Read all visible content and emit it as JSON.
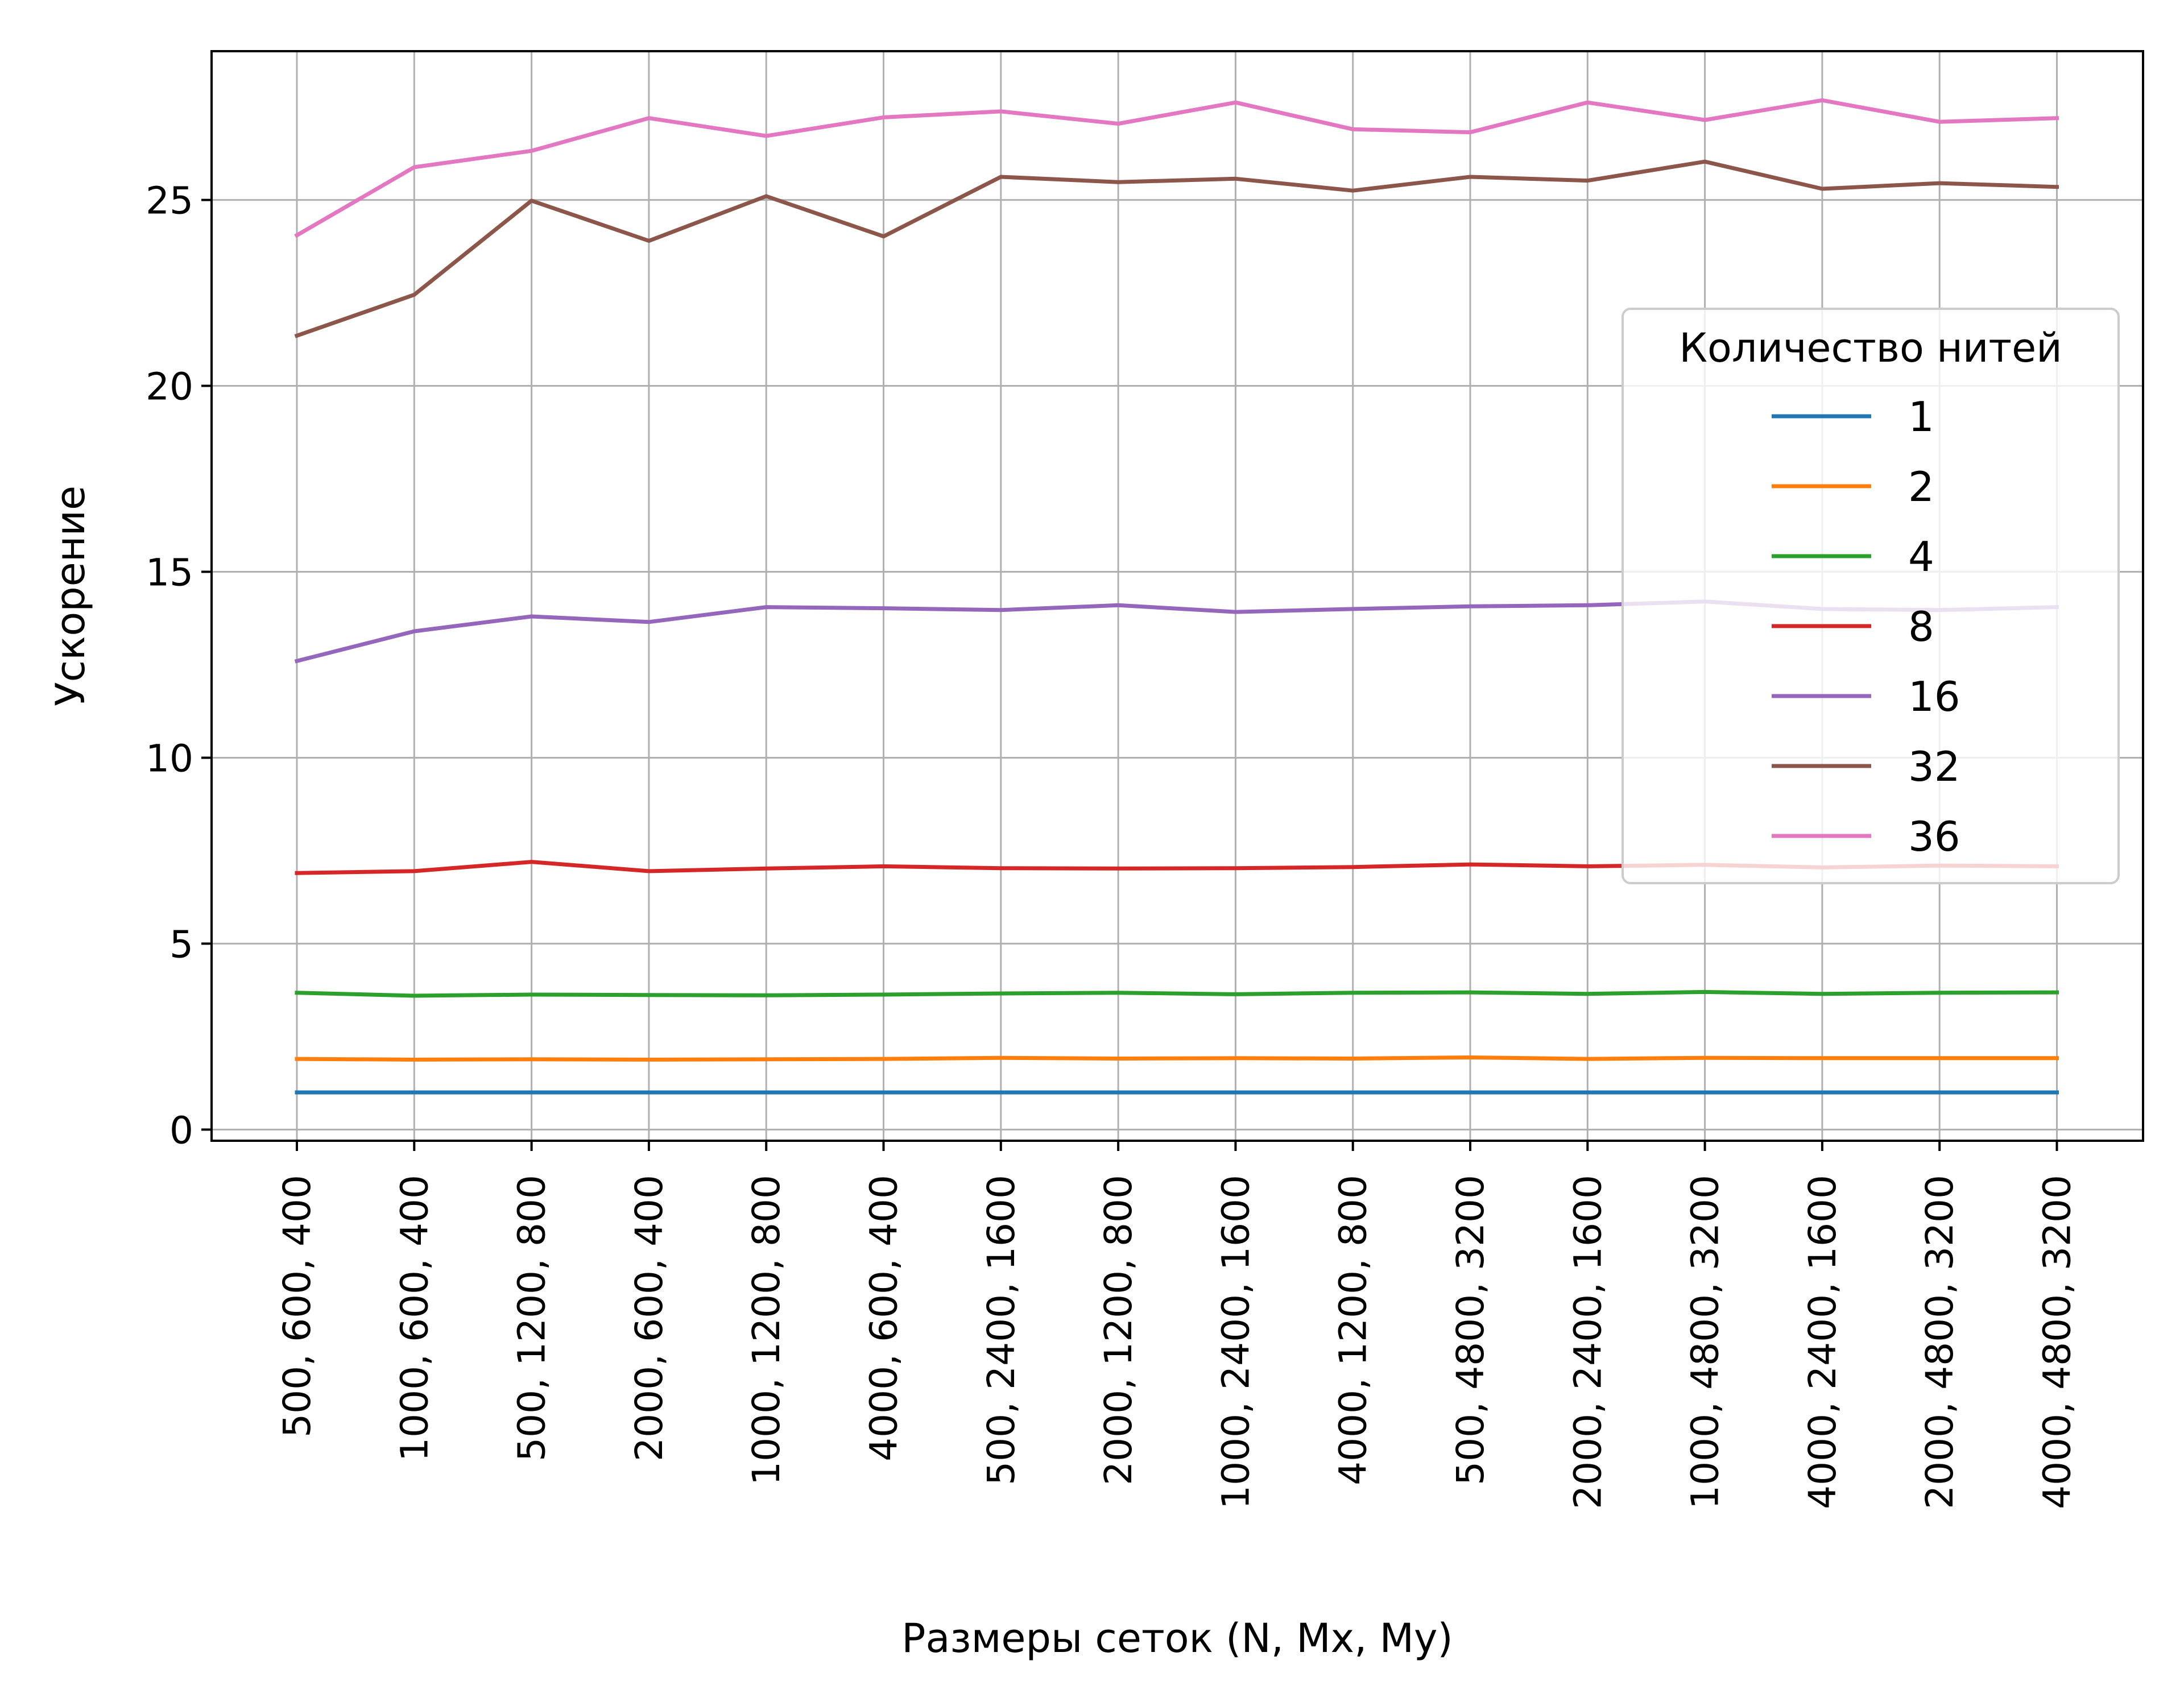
{
  "chart_data": {
    "type": "line",
    "title": "",
    "xlabel": "Размеры сеток (N, Mx, My)",
    "ylabel": "Ускорение",
    "categories": [
      "500,  600,  400",
      "1000,  600,  400",
      "500, 1200,  800",
      "2000,  600,  400",
      "1000, 1200,  800",
      "4000,  600,  400",
      "500, 2400, 1600",
      "2000, 1200,  800",
      "1000, 2400, 1600",
      "4000, 1200,  800",
      "500, 4800, 3200",
      "2000, 2400, 1600",
      "1000, 4800, 3200",
      "4000, 2400, 1600",
      "2000, 4800, 3200",
      "4000, 4800, 3200"
    ],
    "yticks": [
      0,
      5,
      10,
      15,
      20,
      25
    ],
    "ylim": [
      -0.3,
      29.0
    ],
    "grid": true,
    "legend": {
      "title": "Количество нитей",
      "position": "center-right"
    },
    "series": [
      {
        "name": "1",
        "color": "#1f77b4",
        "values": [
          1.0,
          1.0,
          1.0,
          1.0,
          1.0,
          1.0,
          1.0,
          1.0,
          1.0,
          1.0,
          1.0,
          1.0,
          1.0,
          1.0,
          1.0,
          1.0
        ]
      },
      {
        "name": "2",
        "color": "#ff7f0e",
        "values": [
          1.9,
          1.88,
          1.89,
          1.88,
          1.89,
          1.9,
          1.93,
          1.91,
          1.92,
          1.91,
          1.94,
          1.9,
          1.93,
          1.92,
          1.92,
          1.92
        ]
      },
      {
        "name": "4",
        "color": "#2ca02c",
        "values": [
          3.68,
          3.6,
          3.63,
          3.62,
          3.61,
          3.63,
          3.66,
          3.68,
          3.64,
          3.68,
          3.69,
          3.65,
          3.7,
          3.65,
          3.68,
          3.69
        ]
      },
      {
        "name": "8",
        "color": "#d62728",
        "values": [
          6.9,
          6.95,
          7.2,
          6.95,
          7.02,
          7.08,
          7.03,
          7.02,
          7.03,
          7.06,
          7.13,
          7.08,
          7.12,
          7.05,
          7.1,
          7.08
        ]
      },
      {
        "name": "16",
        "color": "#9467bd",
        "values": [
          12.6,
          13.4,
          13.8,
          13.65,
          14.05,
          14.02,
          13.97,
          14.1,
          13.92,
          14.0,
          14.07,
          14.1,
          14.2,
          14.0,
          13.97,
          14.05
        ]
      },
      {
        "name": "32",
        "color": "#8c564b",
        "values": [
          21.35,
          22.45,
          24.98,
          23.9,
          25.1,
          24.02,
          25.62,
          25.48,
          25.57,
          25.25,
          25.62,
          25.52,
          26.03,
          25.3,
          25.45,
          25.35
        ]
      },
      {
        "name": "36",
        "color": "#e377c2",
        "values": [
          24.05,
          25.88,
          26.32,
          27.2,
          26.72,
          27.22,
          27.38,
          27.05,
          27.62,
          26.9,
          26.82,
          27.62,
          27.15,
          27.68,
          27.1,
          27.2
        ]
      }
    ]
  }
}
